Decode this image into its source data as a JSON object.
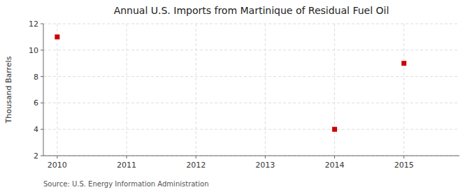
{
  "chart_data": {
    "type": "scatter",
    "title": "Annual U.S. Imports from Martinique of Residual Fuel Oil",
    "ylabel": "Thousand Barrels",
    "source": "Source: U.S. Energy Information Administration",
    "x": [
      2010,
      2014,
      2015
    ],
    "values": [
      11,
      4,
      9
    ],
    "xlim": [
      2009.8,
      2015.8
    ],
    "ylim": [
      2,
      12
    ],
    "xticks": [
      2010,
      2011,
      2012,
      2013,
      2014,
      2015
    ],
    "yticks": [
      2,
      4,
      6,
      8,
      10,
      12
    ],
    "color": "#cc0000",
    "marker": "square",
    "grid": true
  }
}
